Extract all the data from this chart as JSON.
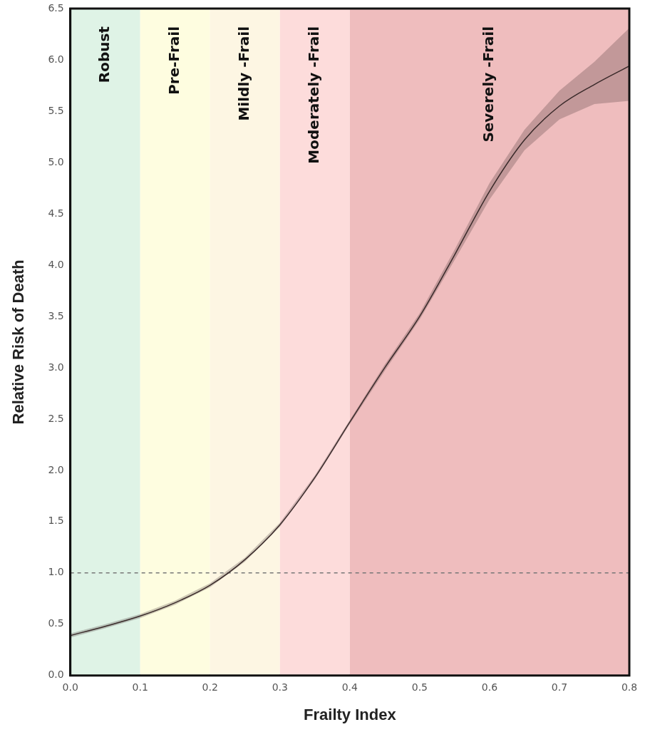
{
  "chart_data": {
    "type": "line",
    "xlabel": "Frailty Index",
    "ylabel": "Relative Risk of Death",
    "x": [
      0,
      0.05,
      0.1,
      0.15,
      0.2,
      0.25,
      0.3,
      0.35,
      0.4,
      0.45,
      0.5,
      0.55,
      0.6,
      0.65,
      0.7,
      0.75,
      0.8
    ],
    "series": [
      {
        "color": "#3a2a2a",
        "values": [
          0.39,
          0.48,
          0.58,
          0.71,
          0.88,
          1.13,
          1.47,
          1.93,
          2.47,
          3.0,
          3.5,
          4.1,
          4.72,
          5.22,
          5.55,
          5.76,
          5.94
        ],
        "lower": [
          0.37,
          0.46,
          0.56,
          0.69,
          0.86,
          1.11,
          1.45,
          1.91,
          2.45,
          2.97,
          3.47,
          4.05,
          4.64,
          5.12,
          5.42,
          5.57,
          5.6
        ],
        "upper": [
          0.41,
          0.5,
          0.6,
          0.73,
          0.9,
          1.15,
          1.49,
          1.95,
          2.49,
          3.03,
          3.53,
          4.15,
          4.8,
          5.32,
          5.7,
          5.98,
          6.31
        ]
      }
    ],
    "xlim": [
      0,
      0.8
    ],
    "xticks": [
      {
        "value": 0,
        "label": "0.0"
      },
      0.1,
      0.2,
      0.3,
      0.4,
      0.5,
      0.6,
      0.7,
      0.8
    ],
    "ylim": [
      0,
      6.5
    ],
    "yticks": [
      {
        "value": 0,
        "label": "0.0"
      },
      0.5,
      {
        "value": 1,
        "label": "1.0"
      },
      1.5,
      {
        "value": 2,
        "label": "2.0"
      },
      2.5,
      {
        "value": 3,
        "label": "3.0"
      },
      3.5,
      {
        "value": 4,
        "label": "4.0"
      },
      4.5,
      {
        "value": 5,
        "label": "5.0"
      },
      5.5,
      {
        "value": 6,
        "label": "6.0"
      },
      6.5
    ],
    "bands": [
      {
        "axis": "x",
        "from": 0,
        "to": 0.1,
        "label": "Robust",
        "color": "#dff3e6"
      },
      {
        "axis": "x",
        "from": 0.1,
        "to": 0.2,
        "label": "Pre-Frail",
        "color": "#fefde0"
      },
      {
        "axis": "x",
        "from": 0.2,
        "to": 0.3,
        "label": "Mildly -Frail",
        "color": "#fdf6e3"
      },
      {
        "axis": "x",
        "from": 0.3,
        "to": 0.4,
        "label": "Moderately -Frail",
        "color": "#fddcdb"
      },
      {
        "axis": "x",
        "from": 0.4,
        "to": 0.8,
        "label": "Severely -Frail",
        "color": "#efbdbe"
      }
    ],
    "ref_lines": [
      {
        "axis": "y",
        "value": 1,
        "color": "#777777",
        "line_style": "dashed"
      }
    ],
    "grid": false,
    "legend": false,
    "marker": "none",
    "line_style": "solid"
  }
}
